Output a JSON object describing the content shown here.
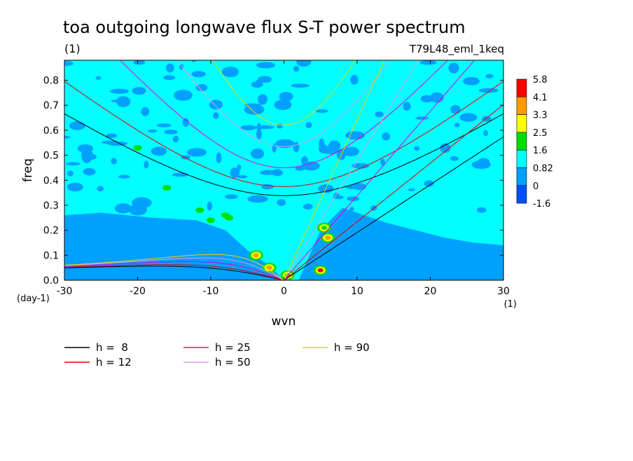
{
  "chart_data": {
    "type": "heatmap",
    "title": "toa outgoing longwave flux S-T power spectrum",
    "subtitle": "(1)",
    "run_label": "T79L48_eml_1keq",
    "xlabel": "wvn",
    "ylabel": "freq",
    "x_unit_label": "(1)",
    "y_unit_label": "(day-1)",
    "xlim": [
      -30,
      30
    ],
    "ylim": [
      0,
      0.88
    ],
    "xticks": [
      "-30",
      "-20",
      "-10",
      "0",
      "10",
      "20",
      "30"
    ],
    "yticks": [
      "0.0",
      "0.1",
      "0.2",
      "0.3",
      "0.4",
      "0.5",
      "0.6",
      "0.7",
      "0.8"
    ],
    "colorbar": {
      "levels": [
        "5.8",
        "4.1",
        "3.3",
        "2.5",
        "1.6",
        "0.82",
        "0",
        "-1.6"
      ],
      "colors": [
        "#ff0000",
        "#ff9c00",
        "#ffff00",
        "#00dd00",
        "#00ffff",
        "#00a0ff",
        "#0050ff"
      ]
    },
    "field_colors": {
      "background": "#00ffff",
      "low_band": "#00a0ff"
    },
    "blue_regions": [
      {
        "name": "westward-low-frequency",
        "points": [
          [
            -30,
            0.0
          ],
          [
            -30,
            0.26
          ],
          [
            -25,
            0.27
          ],
          [
            -18,
            0.25
          ],
          [
            -12,
            0.24
          ],
          [
            -8,
            0.2
          ],
          [
            -5,
            0.12
          ],
          [
            -2,
            0.06
          ],
          [
            0,
            0.0
          ]
        ]
      },
      {
        "name": "eastward-low-frequency",
        "points": [
          [
            2,
            0.0
          ],
          [
            5,
            0.2
          ],
          [
            8,
            0.29
          ],
          [
            10,
            0.27
          ],
          [
            14,
            0.23
          ],
          [
            18,
            0.2
          ],
          [
            22,
            0.17
          ],
          [
            26,
            0.15
          ],
          [
            30,
            0.14
          ],
          [
            30,
            0.0
          ]
        ]
      },
      {
        "name": "equatorial-lowest",
        "points": [
          [
            -30,
            0.0
          ],
          [
            -30,
            0.04
          ],
          [
            -20,
            0.05
          ],
          [
            -10,
            0.04
          ],
          [
            -4,
            0.02
          ],
          [
            0,
            0.0
          ]
        ]
      }
    ],
    "peak_spots": [
      {
        "x": -3.8,
        "y": 0.1,
        "level": "4.1"
      },
      {
        "x": -2.0,
        "y": 0.05,
        "level": "4.1"
      },
      {
        "x": 0.5,
        "y": 0.02,
        "level": "2.5"
      },
      {
        "x": 5.0,
        "y": 0.04,
        "level": "5.8"
      },
      {
        "x": 5.5,
        "y": 0.21,
        "level": "2.5"
      },
      {
        "x": 6.0,
        "y": 0.17,
        "level": "4.1"
      }
    ],
    "green_spots": [
      {
        "x": -16,
        "y": 0.37
      },
      {
        "x": -10,
        "y": 0.24
      },
      {
        "x": -8,
        "y": 0.26
      },
      {
        "x": -7.5,
        "y": 0.25
      },
      {
        "x": -20,
        "y": 0.53
      },
      {
        "x": -11.5,
        "y": 0.28
      }
    ],
    "legend": [
      {
        "label": "h =  8",
        "color": "#000000",
        "h": 8
      },
      {
        "label": "h = 12",
        "color": "#e00000",
        "h": 12
      },
      {
        "label": "h = 25",
        "color": "#e000e0",
        "h": 25
      },
      {
        "label": "h = 50",
        "color": "#dca0e0",
        "h": 50
      },
      {
        "label": "h = 90",
        "color": "#e8d800",
        "h": 90
      }
    ]
  }
}
